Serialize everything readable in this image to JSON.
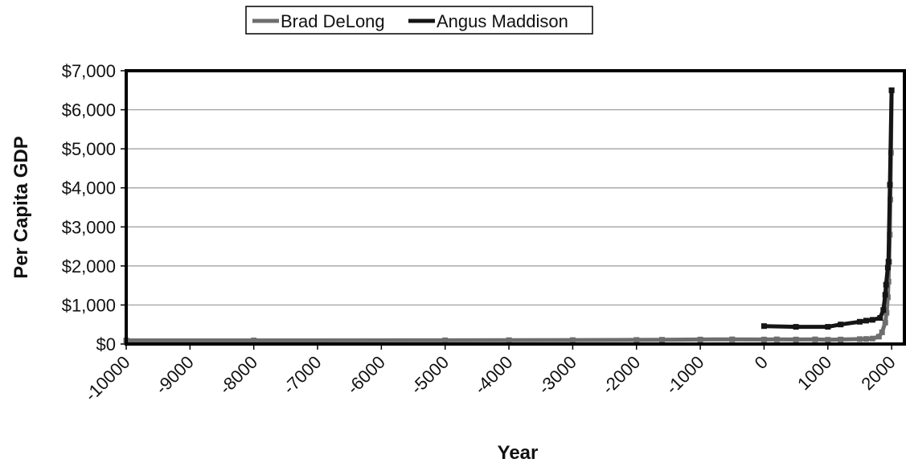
{
  "chart_data": {
    "type": "line",
    "xlabel": "Year",
    "ylabel": "Per Capita GDP",
    "xlim": [
      -10000,
      2200
    ],
    "ylim": [
      0,
      7000
    ],
    "x_ticks": [
      -10000,
      -9000,
      -8000,
      -7000,
      -6000,
      -5000,
      -4000,
      -3000,
      -2000,
      -1000,
      0,
      1000,
      2000
    ],
    "x_tick_labels": [
      "-10000",
      "-9000",
      "-8000",
      "-7000",
      "-6000",
      "-5000",
      "-4000",
      "-3000",
      "-2000",
      "-1000",
      "0",
      "1000",
      "2000"
    ],
    "y_ticks": [
      0,
      1000,
      2000,
      3000,
      4000,
      5000,
      6000,
      7000
    ],
    "y_tick_labels": [
      "$0",
      "$1,000",
      "$2,000",
      "$3,000",
      "$4,000",
      "$5,000",
      "$6,000",
      "$7,000"
    ],
    "grid": "horizontal",
    "legend_position": "top",
    "series": [
      {
        "name": "Brad DeLong",
        "color": "#6e6e6e",
        "x": [
          -10000,
          -8000,
          -5000,
          -4000,
          -3000,
          -2000,
          -1600,
          -1000,
          -500,
          0,
          200,
          500,
          800,
          1000,
          1200,
          1500,
          1600,
          1700,
          1800,
          1850,
          1900,
          1920,
          1940,
          1950,
          1960,
          1970,
          1980,
          1990,
          2000
        ],
        "y": [
          92,
          93,
          95,
          98,
          100,
          105,
          110,
          115,
          120,
          115,
          120,
          115,
          120,
          110,
          115,
          125,
          130,
          140,
          190,
          300,
          550,
          800,
          1200,
          1600,
          2100,
          2800,
          3700,
          4900,
          6500
        ]
      },
      {
        "name": "Angus Maddison",
        "color": "#151515",
        "x": [
          0,
          500,
          1000,
          1200,
          1500,
          1600,
          1700,
          1820,
          1870,
          1900,
          1913,
          1940,
          1950,
          1973,
          2000
        ],
        "y": [
          460,
          440,
          440,
          500,
          570,
          600,
          620,
          670,
          870,
          1260,
          1520,
          1960,
          2110,
          4080,
          6500
        ]
      }
    ]
  }
}
